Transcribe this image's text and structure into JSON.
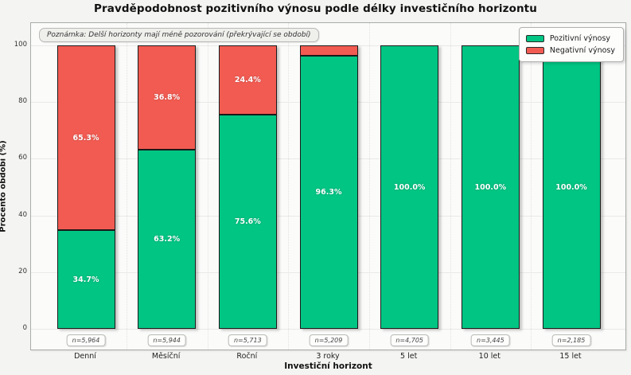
{
  "title": "Pravděpodobnost pozitivního výnosu podle délky investičního horizontu",
  "note": "Poznámka: Delší horizonty mají méně pozorování (překrývající se období)",
  "legend": [
    {
      "label": "Pozitivní výnosy",
      "color": "#00c583"
    },
    {
      "label": "Negativní výnosy",
      "color": "#f25b52"
    }
  ],
  "colors": {
    "positive": "#00c583",
    "negative": "#f25b52",
    "bar_edge": "#1a1a1a",
    "figure_bg": "#f4f4f2",
    "plot_bg": "#fbfbfa"
  },
  "chart_data": {
    "type": "bar",
    "stacked": true,
    "title": "Pravděpodobnost pozitivního výnosu podle délky investičního horizontu",
    "xlabel": "Investiční horizont",
    "ylabel": "Procento období (%)",
    "categories": [
      "Denní",
      "Měsíční",
      "Roční",
      "3 roky",
      "5 let",
      "10 let",
      "15 let"
    ],
    "series": [
      {
        "name": "Pozitivní výnosy",
        "color": "#00c583",
        "values": [
          34.7,
          63.2,
          75.6,
          96.3,
          100.0,
          100.0,
          100.0
        ]
      },
      {
        "name": "Negativní výnosy",
        "color": "#f25b52",
        "values": [
          65.3,
          36.8,
          24.4,
          3.7,
          0.0,
          0.0,
          0.0
        ]
      }
    ],
    "n_labels": [
      "n=5,964",
      "n=5,944",
      "n=5,713",
      "n=5,209",
      "n=4,705",
      "n=3,445",
      "n=2,185"
    ],
    "yticks": [
      0,
      20,
      40,
      60,
      80,
      100
    ],
    "ylim": [
      0,
      100
    ],
    "grid": true,
    "legend_position": "upper right",
    "annotation": "Poznámka: Delší horizonty mají méně pozorování (překrývající se období)"
  }
}
